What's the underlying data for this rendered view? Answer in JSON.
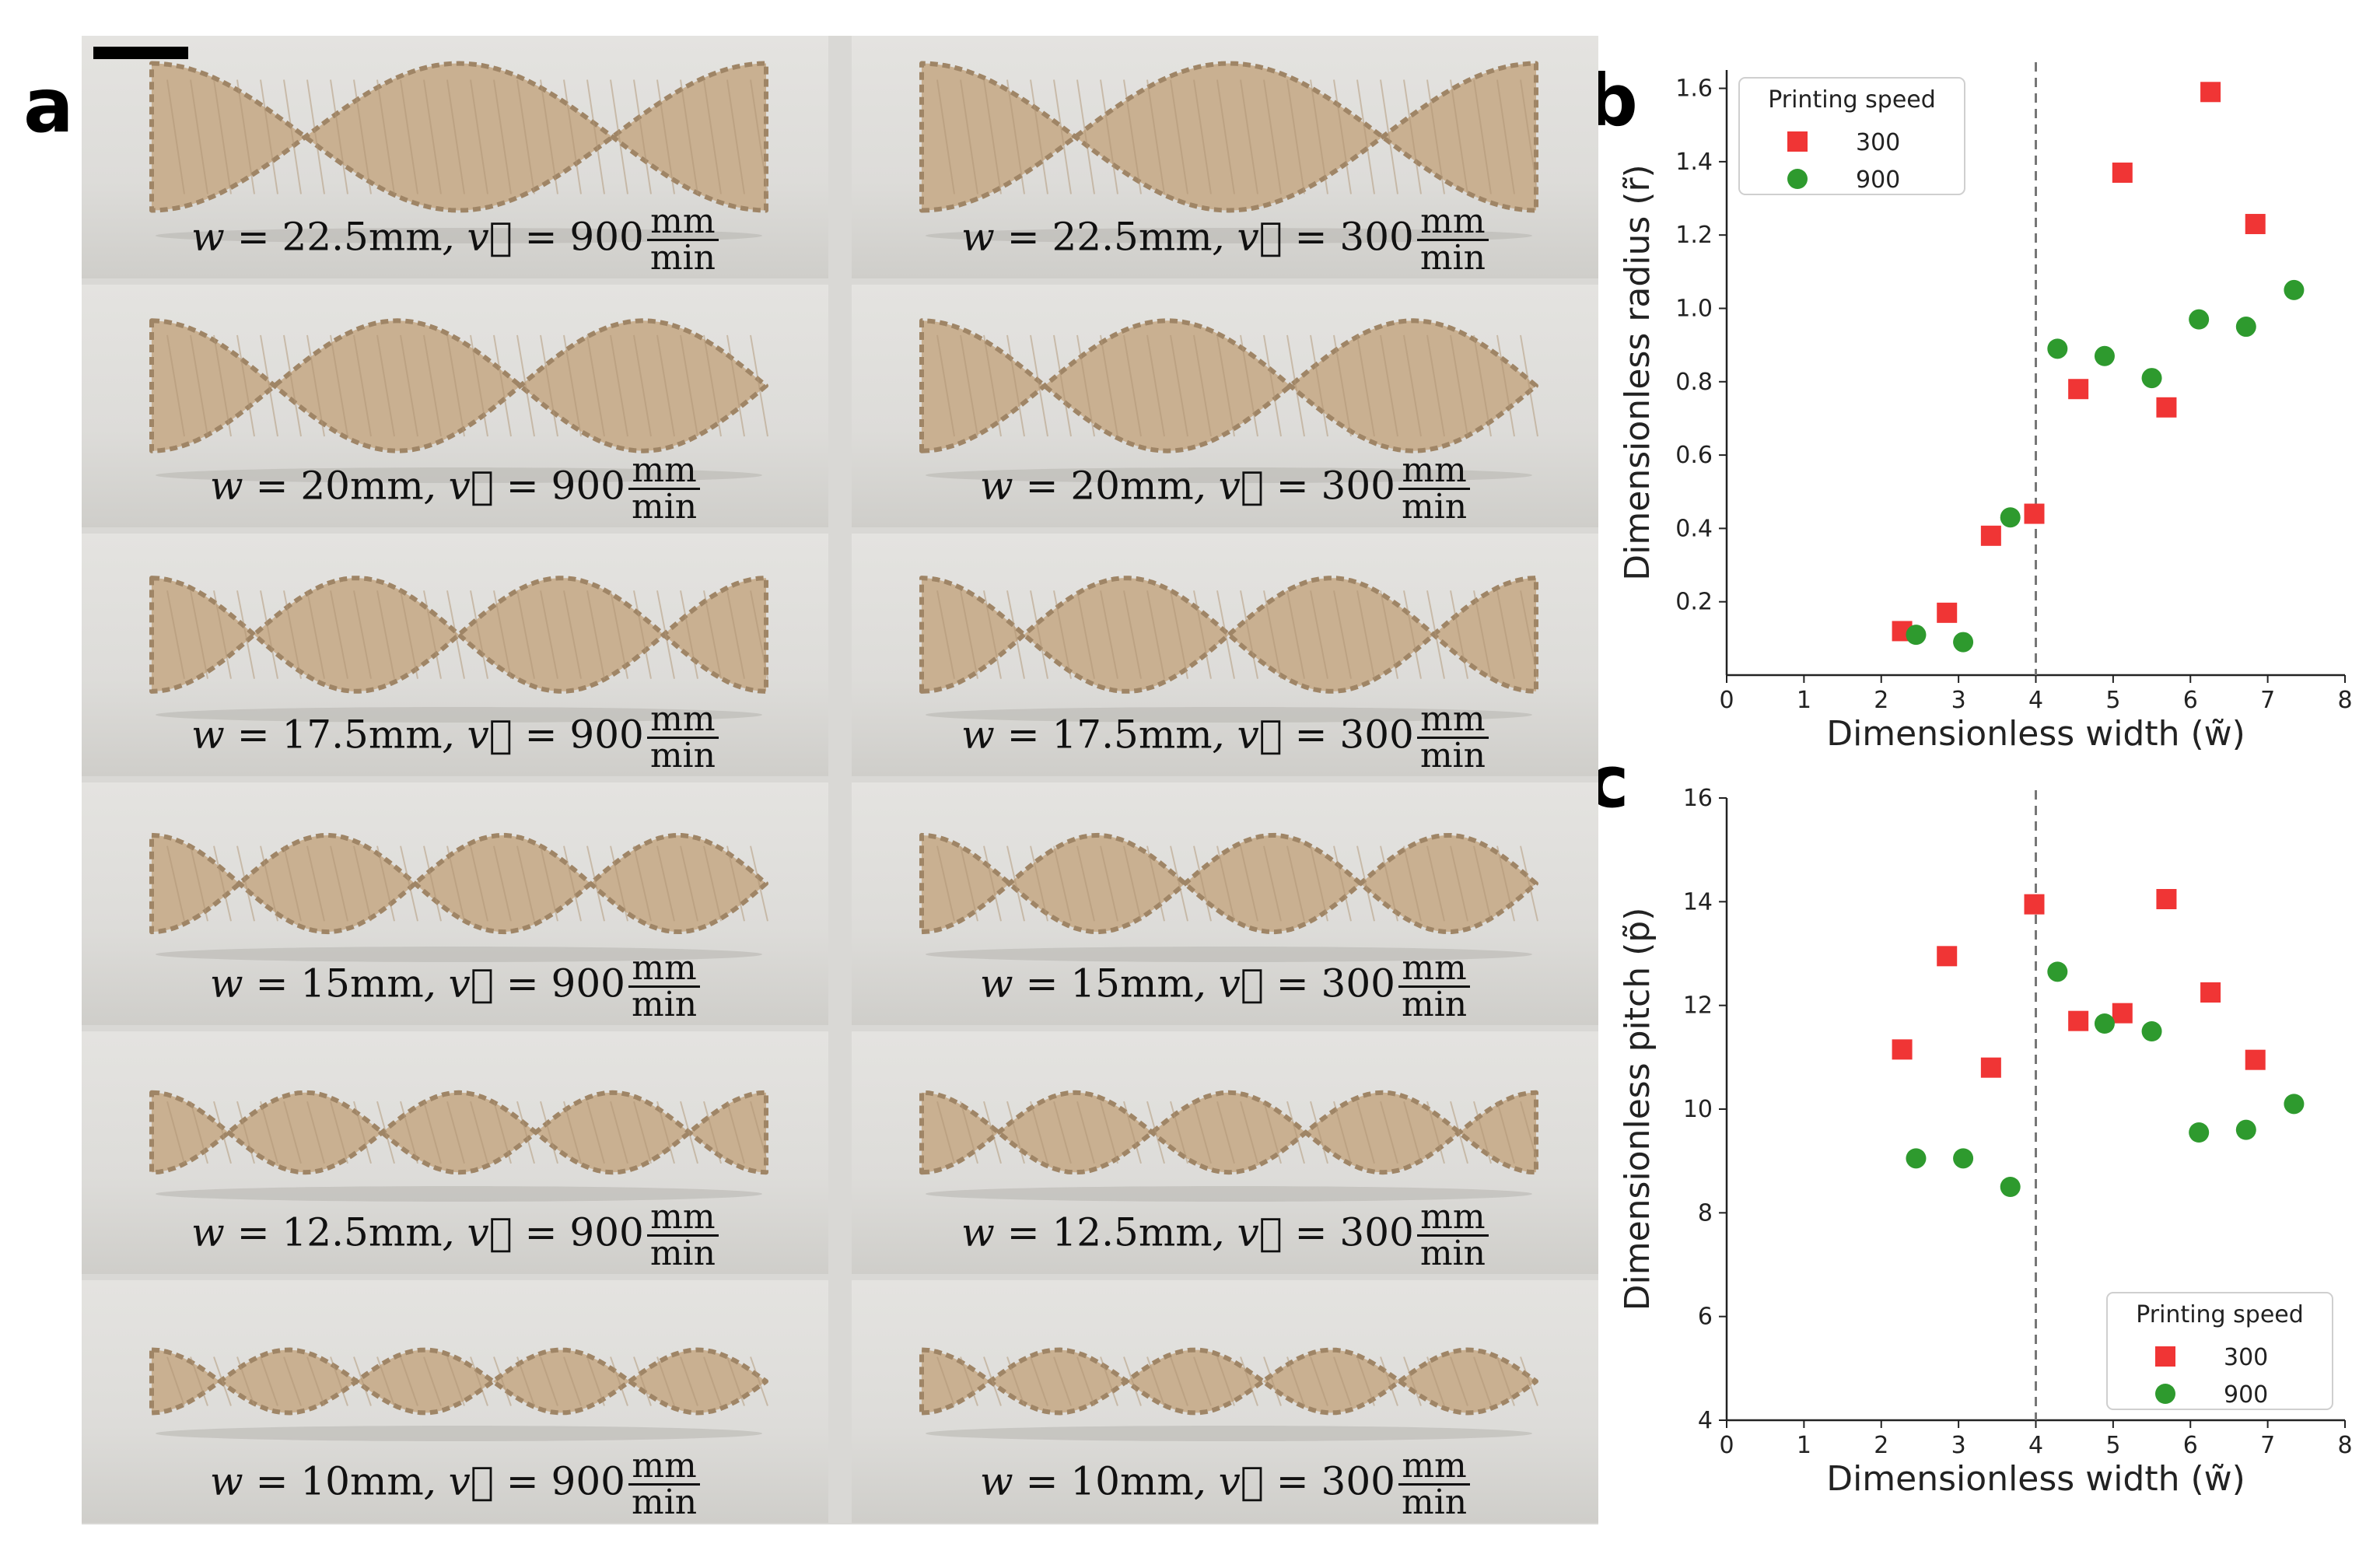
{
  "figure": {
    "panel_labels": [
      "a",
      "b",
      "c"
    ]
  },
  "photos": [
    {
      "w": "22.5mm",
      "v": "900",
      "unit_num": "mm",
      "unit_den": "min"
    },
    {
      "w": "22.5mm",
      "v": "300",
      "unit_num": "mm",
      "unit_den": "min"
    },
    {
      "w": "20mm",
      "v": "900",
      "unit_num": "mm",
      "unit_den": "min"
    },
    {
      "w": "20mm",
      "v": "300",
      "unit_num": "mm",
      "unit_den": "min"
    },
    {
      "w": "17.5mm",
      "v": "900",
      "unit_num": "mm",
      "unit_den": "min"
    },
    {
      "w": "17.5mm",
      "v": "300",
      "unit_num": "mm",
      "unit_den": "min"
    },
    {
      "w": "15mm",
      "v": "900",
      "unit_num": "mm",
      "unit_den": "min"
    },
    {
      "w": "15mm",
      "v": "300",
      "unit_num": "mm",
      "unit_den": "min"
    },
    {
      "w": "12.5mm",
      "v": "900",
      "unit_num": "mm",
      "unit_den": "min"
    },
    {
      "w": "12.5mm",
      "v": "300",
      "unit_num": "mm",
      "unit_den": "min"
    },
    {
      "w": "10mm",
      "v": "900",
      "unit_num": "mm",
      "unit_den": "min"
    },
    {
      "w": "10mm",
      "v": "300",
      "unit_num": "mm",
      "unit_den": "min"
    }
  ],
  "colors": {
    "photo_bg": "#dddcd9",
    "ribbon_fill": "#c9b091",
    "ribbon_edge": "#9f8566",
    "series_300": "#f03535",
    "series_900": "#2e9a2e",
    "dashed_line": "#777777"
  },
  "chart_data": [
    {
      "type": "scatter",
      "panel": "b",
      "xlabel": "Dimensionless width (w̃)",
      "ylabel": "Dimensionless radius (r̃)",
      "xlim": [
        0,
        8
      ],
      "ylim": [
        0,
        1.65
      ],
      "xticks": [
        0,
        1,
        2,
        3,
        4,
        5,
        6,
        7,
        8
      ],
      "yticks": [
        0.2,
        0.4,
        0.6,
        0.8,
        1.0,
        1.2,
        1.4,
        1.6
      ],
      "ytick_labels": [
        "0.2",
        "0.4",
        "0.6",
        "0.8",
        "1.0",
        "1.2",
        "1.4",
        "1.6"
      ],
      "vline": 4,
      "legend": {
        "title": "Printing speed",
        "position": "top-left"
      },
      "series": [
        {
          "name": "300",
          "marker": "square",
          "x": [
            2.27,
            2.85,
            3.42,
            3.98,
            4.55,
            5.12,
            5.69,
            6.26,
            6.84
          ],
          "y": [
            0.12,
            0.17,
            0.38,
            0.44,
            0.78,
            1.37,
            0.73,
            1.59,
            1.23
          ]
        },
        {
          "name": "900",
          "marker": "circle",
          "x": [
            2.45,
            3.06,
            3.67,
            4.28,
            4.89,
            5.5,
            6.11,
            6.72,
            7.34
          ],
          "y": [
            0.11,
            0.09,
            0.43,
            0.89,
            0.87,
            0.81,
            0.97,
            0.95,
            1.05
          ]
        }
      ]
    },
    {
      "type": "scatter",
      "panel": "c",
      "xlabel": "Dimensionless width (w̃)",
      "ylabel": "Dimensionless pitch (p̃)",
      "xlim": [
        0,
        8
      ],
      "ylim": [
        4,
        16
      ],
      "xticks": [
        0,
        1,
        2,
        3,
        4,
        5,
        6,
        7,
        8
      ],
      "yticks": [
        4,
        6,
        8,
        10,
        12,
        14,
        16
      ],
      "ytick_labels": [
        "4",
        "6",
        "8",
        "10",
        "12",
        "14",
        "16"
      ],
      "vline": 4,
      "legend": {
        "title": "Printing speed",
        "position": "bottom-right"
      },
      "series": [
        {
          "name": "300",
          "marker": "square",
          "x": [
            2.27,
            2.85,
            3.42,
            3.98,
            4.55,
            5.12,
            5.69,
            6.26,
            6.84
          ],
          "y": [
            11.15,
            12.95,
            10.8,
            13.95,
            11.7,
            11.85,
            14.05,
            12.25,
            10.95
          ]
        },
        {
          "name": "900",
          "marker": "circle",
          "x": [
            2.45,
            3.06,
            3.67,
            4.28,
            4.89,
            5.5,
            6.11,
            6.72,
            7.34
          ],
          "y": [
            9.05,
            9.05,
            8.5,
            12.65,
            11.65,
            11.5,
            9.55,
            9.6,
            10.1
          ]
        }
      ]
    }
  ]
}
